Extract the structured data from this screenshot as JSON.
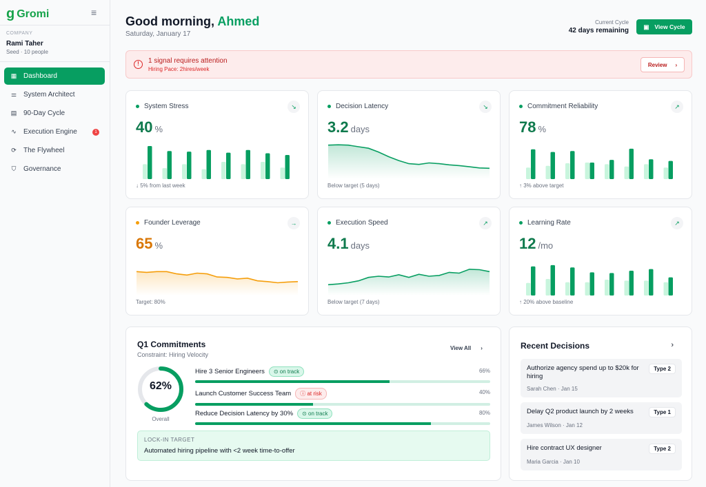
{
  "brand": {
    "name": "Gromi",
    "logo_glyph": "g"
  },
  "company": {
    "label": "COMPANY",
    "name": "Rami Taher",
    "sub": "Seed · 10 people"
  },
  "nav": [
    {
      "label": "Dashboard",
      "icon": "grid-icon",
      "glyph": "▦",
      "active": true
    },
    {
      "label": "System Architect",
      "icon": "sliders-icon",
      "glyph": "⚌"
    },
    {
      "label": "90-Day Cycle",
      "icon": "calendar-icon",
      "glyph": "▤"
    },
    {
      "label": "Execution Engine",
      "icon": "activity-icon",
      "glyph": "∿",
      "badge": "1"
    },
    {
      "label": "The Flywheel",
      "icon": "refresh-icon",
      "glyph": "⟳"
    },
    {
      "label": "Governance",
      "icon": "shield-icon",
      "glyph": "⛉"
    }
  ],
  "header": {
    "greeting": "Good morning,",
    "name": "Ahmed",
    "date": "Saturday, January 17",
    "cycle_label": "Current Cycle",
    "cycle_value": "42 days remaining",
    "view_cycle": "View Cycle"
  },
  "alert": {
    "title": "1 signal requires attention",
    "sub": "Hiring Pace: 2hires/week",
    "button": "Review"
  },
  "metrics": [
    {
      "title": "System Stress",
      "value": "40",
      "unit": "%",
      "trend": "↘",
      "foot": "↓ 5% from last week",
      "color": "#079e61",
      "chart": "bars",
      "light": [
        45,
        33,
        45,
        30,
        52,
        45,
        52,
        35
      ],
      "dark": [
        100,
        85,
        83,
        88,
        80,
        88,
        78,
        73
      ]
    },
    {
      "title": "Decision Latency",
      "value": "3.2",
      "unit": "days",
      "trend": "↘",
      "foot": "Below target (5 days)",
      "color": "#079e61",
      "chart": "area",
      "series": [
        88,
        89,
        88,
        84,
        80,
        70,
        58,
        48,
        40,
        38,
        42,
        40,
        37,
        35,
        32,
        29,
        28
      ]
    },
    {
      "title": "Commitment Reliability",
      "value": "78",
      "unit": "%",
      "trend": "↗",
      "foot": "↑ 3% above target",
      "color": "#079e61",
      "chart": "bars",
      "light": [
        35,
        40,
        48,
        50,
        45,
        38,
        45,
        35
      ],
      "dark": [
        90,
        82,
        85,
        50,
        58,
        92,
        60,
        55
      ]
    },
    {
      "title": "Founder Leverage",
      "value": "65",
      "unit": "%",
      "trend": "→",
      "foot": "Target: 80%",
      "color": "#f59e0b",
      "chart": "area",
      "series": [
        62,
        60,
        62,
        62,
        56,
        53,
        58,
        56,
        48,
        47,
        43,
        45,
        38,
        36,
        33,
        35,
        36
      ]
    },
    {
      "title": "Execution Speed",
      "value": "4.1",
      "unit": "days",
      "trend": "↗",
      "foot": "Below target (7 days)",
      "color": "#079e61",
      "chart": "area",
      "series": [
        28,
        30,
        33,
        38,
        47,
        50,
        48,
        54,
        47,
        55,
        50,
        52,
        60,
        58,
        68,
        67,
        62
      ]
    },
    {
      "title": "Learning Rate",
      "value": "12",
      "unit": "/mo",
      "trend": "↗",
      "foot": "↑ 20% above baseline",
      "color": "#079e61",
      "chart": "bars",
      "light": [
        38,
        50,
        40,
        40,
        48,
        45,
        45,
        40
      ],
      "dark": [
        88,
        92,
        85,
        70,
        68,
        75,
        80,
        55
      ]
    }
  ],
  "commitments": {
    "title": "Q1 Commitments",
    "sub": "Constraint: Hiring Velocity",
    "view_all": "View All",
    "overall_pct": 62,
    "overall_label": "62%",
    "overall_caption": "Overall",
    "goals": [
      {
        "title": "Hire 3 Senior Engineers",
        "status": "on track",
        "kind": "ok",
        "pct": 66,
        "pct_label": "66%"
      },
      {
        "title": "Launch Customer Success Team",
        "status": "at risk",
        "kind": "risk",
        "pct": 40,
        "pct_label": "40%"
      },
      {
        "title": "Reduce Decision Latency by 30%",
        "status": "on track",
        "kind": "ok",
        "pct": 80,
        "pct_label": "80%"
      }
    ],
    "lock_label": "LOCK-IN TARGET",
    "lock_text": "Automated hiring pipeline with <2 week time-to-offer"
  },
  "decisions": {
    "title": "Recent Decisions",
    "items": [
      {
        "title": "Authorize agency spend up to $20k for hiring",
        "meta": "Sarah Chen · Jan 15",
        "type": "Type 2"
      },
      {
        "title": "Delay Q2 product launch by 2 weeks",
        "meta": "James Wilson · Jan 12",
        "type": "Type 1"
      },
      {
        "title": "Hire contract UX designer",
        "meta": "Maria Garcia · Jan 10",
        "type": "Type 2"
      }
    ]
  }
}
